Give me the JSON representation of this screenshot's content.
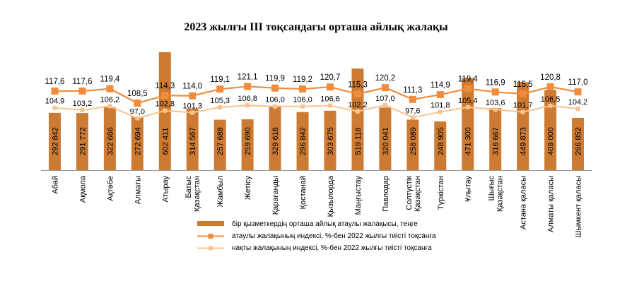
{
  "chart_data": {
    "type": "bar",
    "title": "2023 жылғы ІІІ тоқсандағы орташа айлық жалақы",
    "categories": [
      "Абай",
      "Ақмола",
      "Ақтөбе",
      "Алматы",
      "Атырау",
      "Батыс Қазақстан",
      "Жамбыл",
      "Жетісу",
      "Қарағанды",
      "Қостанай",
      "Қызылорда",
      "Маңғыстау",
      "Павлодар",
      "Солтүстік Қазақстан",
      "Түркістан",
      "Ұлытау",
      "Шығыс Қазақстан",
      "Астана қаласы",
      "Алматы қаласы",
      "Шымкент қаласы"
    ],
    "series": [
      {
        "name": "бір қызметкердің орташа айлық атаулы жалақысы, теңге",
        "type": "bar",
        "color": "#cd7a32",
        "values": [
          292842,
          291772,
          322666,
          272694,
          602411,
          314567,
          257688,
          259690,
          329618,
          296842,
          303675,
          519118,
          320041,
          258089,
          248905,
          471300,
          316667,
          449873,
          409000,
          266852
        ],
        "labels": [
          "292 842",
          "291 772",
          "322 666",
          "272 694",
          "602 411",
          "314 567",
          "257 688",
          "259 690",
          "329 618",
          "296 842",
          "303 675",
          "519 118",
          "320 041",
          "258 089",
          "248 905",
          "471 300",
          "316 667",
          "449 873",
          "409 000",
          "266 852"
        ]
      },
      {
        "name": "атаулы жалақының индексі, %-бен 2022 жылғы тиісті тоқсанға",
        "type": "line",
        "color": "#f08c3c",
        "values": [
          117.6,
          117.6,
          119.4,
          108.5,
          114.3,
          114.0,
          119.1,
          121.1,
          119.9,
          119.2,
          120.7,
          115.3,
          120.2,
          111.3,
          114.9,
          119.4,
          116.9,
          115.5,
          120.8,
          117.0
        ],
        "labels": [
          "117,6",
          "117,6",
          "119,4",
          "108,5",
          "114,3",
          "114,0",
          "119,1",
          "121,1",
          "119,9",
          "119,2",
          "120,7",
          "115,3",
          "120,2",
          "111,3",
          "114,9",
          "119,4",
          "116,9",
          "115,5",
          "120,8",
          "117,0"
        ]
      },
      {
        "name": "нақты жалақының индексі, %-бен 2022 жылғы тиісті тоқсанға",
        "type": "line",
        "color": "#f7c48e",
        "values": [
          104.9,
          103.2,
          106.2,
          97.0,
          102.8,
          101.3,
          105.3,
          106.8,
          106.0,
          106.0,
          106.6,
          102.2,
          107.0,
          97.6,
          101.8,
          105.4,
          103.6,
          101.7,
          106.5,
          104.2
        ],
        "labels": [
          "104,9",
          "103,2",
          "106,2",
          "97,0",
          "102,8",
          "101,3",
          "105,3",
          "106,8",
          "106,0",
          "106,0",
          "106,6",
          "102,2",
          "107,0",
          "97,6",
          "101,8",
          "105,4",
          "103,6",
          "101,7",
          "106,5",
          "104,2"
        ]
      }
    ],
    "category_labels": [
      [
        "Абай"
      ],
      [
        "Ақмола"
      ],
      [
        "Ақтөбе"
      ],
      [
        "Алматы"
      ],
      [
        "Атырау"
      ],
      [
        "Батыс",
        "Қазақстан"
      ],
      [
        "Жамбыл"
      ],
      [
        "Жетісу"
      ],
      [
        "Қарағанды"
      ],
      [
        "Қостанай"
      ],
      [
        "Қызылорда"
      ],
      [
        "Маңғыстау"
      ],
      [
        "Павлодар"
      ],
      [
        "Солтүстік",
        "Қазақстан"
      ],
      [
        "Түркістан"
      ],
      [
        "Ұлытау"
      ],
      [
        "Шығыс",
        "Қазақстан"
      ],
      [
        "Астана қаласы"
      ],
      [
        "Алматы қаласы"
      ],
      [
        "Шымкент қаласы"
      ]
    ],
    "grid": false,
    "legend_position": "bottom"
  }
}
